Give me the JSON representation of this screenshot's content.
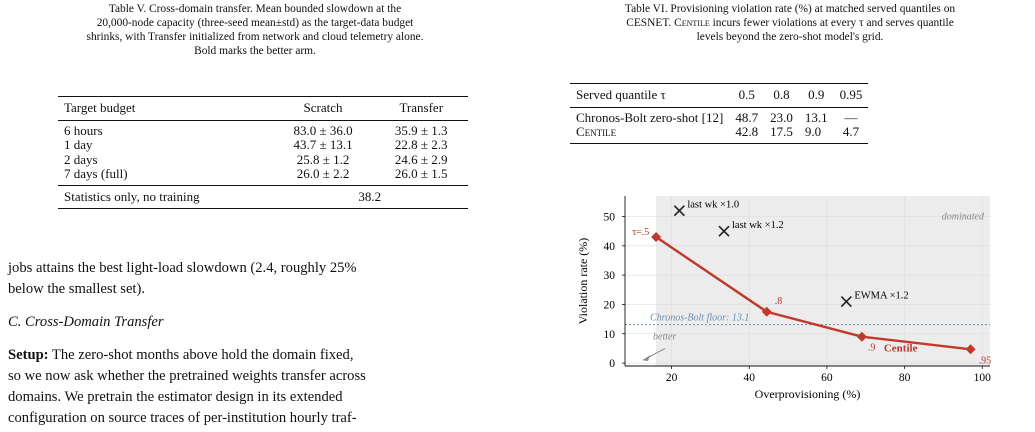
{
  "table5": {
    "caption_line1": "Table V. Cross-domain transfer. Mean bounded slowdown at the",
    "caption_line2": "20,000-node capacity (three-seed mean±std) as the target-data budget",
    "caption_line3": "shrinks, with Transfer initialized from network and cloud telemetry alone.",
    "caption_line4": "Bold marks the better arm.",
    "headers": [
      "Target budget",
      "Scratch",
      "Transfer"
    ],
    "rows": [
      {
        "budget": "6 hours",
        "scratch": "83.0 ± 36.0",
        "transfer": "35.9 ± 1.3"
      },
      {
        "budget": "1 day",
        "scratch": "43.7 ± 13.1",
        "transfer": "22.8 ± 2.3"
      },
      {
        "budget": "2 days",
        "scratch": "25.8 ± 1.2",
        "transfer": "24.6 ± 2.9"
      },
      {
        "budget": "7 days (full)",
        "scratch": "26.0 ± 2.2",
        "transfer": "26.0 ± 1.5"
      }
    ],
    "stats_label": "Statistics only, no training",
    "stats_value": "38.2"
  },
  "body": {
    "para1_line1": "jobs attains the best light-load slowdown (2.4, roughly 25%",
    "para1_line2": "below the smallest set).",
    "section_heading": "C. Cross-Domain Transfer",
    "setup_label": "Setup:",
    "para2_line1_rest": " The zero-shot months above hold the domain fixed,",
    "para2_line2": "so we now ask whether the pretrained weights transfer across",
    "para2_line3": "domains. We pretrain the estimator design in its extended",
    "para2_line4": "configuration on source traces of per-institution hourly traf-"
  },
  "table6": {
    "caption_line1": "Table VI. Provisioning violation rate (%) at matched served quantiles on",
    "caption_line2_a": "CESNET. ",
    "caption_line2_sc": "Centile",
    "caption_line2_b": " incurs fewer violations at every τ and serves quantile",
    "caption_line3": "levels beyond the zero-shot model's grid.",
    "header_label": "Served quantile τ",
    "quantiles": [
      "0.5",
      "0.8",
      "0.9",
      "0.95"
    ],
    "rows": [
      {
        "label": "Chronos-Bolt zero-shot [12]",
        "values": [
          "48.7",
          "23.0",
          "13.1",
          "—"
        ]
      },
      {
        "label": "Centile",
        "values": [
          "42.8",
          "17.5",
          "9.0",
          "4.7"
        ]
      }
    ]
  },
  "chart_data": {
    "type": "scatter",
    "xlabel": "Overprovisioning (%)",
    "ylabel": "Violation rate (%)",
    "xlim": [
      8,
      102
    ],
    "ylim": [
      -1,
      57
    ],
    "xticks": [
      20,
      40,
      60,
      80,
      100
    ],
    "yticks": [
      0,
      10,
      20,
      30,
      40,
      50
    ],
    "dominated_label": "dominated",
    "floor_label": "Chronos-Bolt floor: 13.1",
    "floor_value": 13.1,
    "better_label": "better",
    "centile_series": {
      "name": "Centile",
      "color": "#c0392b",
      "points": [
        {
          "x": 16,
          "y": 43,
          "label": "τ=.5"
        },
        {
          "x": 44.5,
          "y": 17.5,
          "label": ".8"
        },
        {
          "x": 69,
          "y": 9,
          "label": ".9"
        },
        {
          "x": 97,
          "y": 4.7,
          "label": ".95"
        }
      ]
    },
    "baselines": [
      {
        "x": 22,
        "y": 52,
        "label": "last wk ×1.0"
      },
      {
        "x": 33.5,
        "y": 45,
        "label": "last wk ×1.2"
      },
      {
        "x": 65,
        "y": 21,
        "label": "EWMA ×1.2"
      }
    ]
  }
}
